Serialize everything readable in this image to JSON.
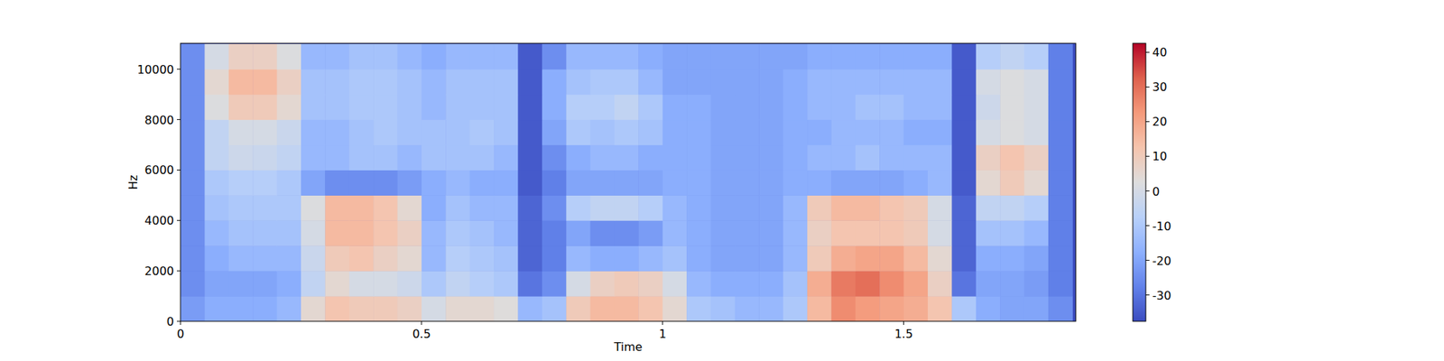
{
  "chart_data": {
    "type": "heatmap",
    "x_label": "Time",
    "y_label": "Hz",
    "x": [
      0.025,
      0.075,
      0.125,
      0.175,
      0.225,
      0.275,
      0.325,
      0.375,
      0.425,
      0.475,
      0.525,
      0.575,
      0.625,
      0.675,
      0.725,
      0.775,
      0.825,
      0.875,
      0.925,
      0.975,
      1.025,
      1.075,
      1.125,
      1.175,
      1.225,
      1.275,
      1.325,
      1.375,
      1.425,
      1.475,
      1.525,
      1.575,
      1.625,
      1.675,
      1.725,
      1.775,
      1.825
    ],
    "y": [
      500,
      1500,
      2500,
      3500,
      4500,
      5500,
      6500,
      7500,
      8500,
      9500,
      10500
    ],
    "values": [
      [
        -22,
        -18,
        -18,
        -18,
        -15,
        5,
        12,
        10,
        10,
        8,
        0,
        5,
        5,
        3,
        -15,
        -12,
        10,
        15,
        15,
        12,
        5,
        -10,
        -12,
        -15,
        -15,
        -10,
        15,
        25,
        22,
        20,
        18,
        12,
        -10,
        -18,
        -20,
        -20,
        -25
      ],
      [
        -25,
        -20,
        -20,
        -20,
        -18,
        -5,
        5,
        0,
        0,
        -2,
        -10,
        -5,
        -8,
        -10,
        -30,
        -25,
        0,
        8,
        10,
        8,
        0,
        -15,
        -18,
        -18,
        -18,
        -12,
        18,
        28,
        30,
        25,
        20,
        8,
        -30,
        -20,
        -20,
        -22,
        -28
      ],
      [
        -25,
        -18,
        -15,
        -15,
        -15,
        -3,
        10,
        12,
        8,
        5,
        -15,
        -8,
        -10,
        -12,
        -33,
        -28,
        -15,
        -18,
        -18,
        -15,
        -12,
        -18,
        -20,
        -20,
        -20,
        -15,
        10,
        18,
        20,
        20,
        15,
        5,
        -33,
        -18,
        -18,
        -20,
        -28
      ],
      [
        -25,
        -15,
        -12,
        -12,
        -12,
        0,
        15,
        15,
        12,
        8,
        -15,
        -10,
        -12,
        -15,
        -33,
        -28,
        -20,
        -25,
        -25,
        -22,
        -15,
        -18,
        -20,
        -20,
        -20,
        -15,
        8,
        12,
        12,
        12,
        10,
        0,
        -33,
        -12,
        -12,
        -15,
        -28
      ],
      [
        -25,
        -12,
        -10,
        -10,
        -10,
        2,
        15,
        15,
        12,
        5,
        -18,
        -12,
        -15,
        -15,
        -33,
        -25,
        -8,
        -5,
        -5,
        -8,
        -15,
        -18,
        -20,
        -20,
        -20,
        -15,
        10,
        15,
        15,
        12,
        10,
        0,
        -33,
        -5,
        -5,
        -8,
        -28
      ],
      [
        -25,
        -10,
        -8,
        -8,
        -10,
        -20,
        -25,
        -25,
        -25,
        -22,
        -18,
        -15,
        -18,
        -18,
        -35,
        -28,
        -20,
        -20,
        -20,
        -20,
        -18,
        -18,
        -20,
        -20,
        -20,
        -18,
        -18,
        -20,
        -20,
        -20,
        -18,
        -15,
        -35,
        5,
        10,
        5,
        -28
      ],
      [
        -25,
        -5,
        -2,
        -3,
        -5,
        -15,
        -15,
        -12,
        -12,
        -15,
        -12,
        -12,
        -12,
        -15,
        -35,
        -25,
        -18,
        -15,
        -15,
        -18,
        -18,
        -18,
        -20,
        -20,
        -20,
        -18,
        -15,
        -15,
        -12,
        -15,
        -15,
        -15,
        -35,
        8,
        12,
        8,
        -28
      ],
      [
        -25,
        -5,
        0,
        0,
        -3,
        -15,
        -15,
        -12,
        -10,
        -12,
        -12,
        -12,
        -10,
        -12,
        -35,
        -20,
        -10,
        -12,
        -10,
        -12,
        -18,
        -18,
        -20,
        -20,
        -20,
        -18,
        -18,
        -15,
        -15,
        -15,
        -18,
        -18,
        -35,
        0,
        2,
        0,
        -28
      ],
      [
        -25,
        2,
        10,
        10,
        5,
        -12,
        -12,
        -10,
        -10,
        -12,
        -15,
        -12,
        -12,
        -12,
        -35,
        -18,
        -8,
        -8,
        -5,
        -10,
        -18,
        -18,
        -20,
        -20,
        -20,
        -18,
        -15,
        -15,
        -12,
        -12,
        -15,
        -15,
        -35,
        -2,
        2,
        0,
        -28
      ],
      [
        -25,
        5,
        15,
        15,
        8,
        -12,
        -12,
        -10,
        -10,
        -12,
        -15,
        -12,
        -12,
        -12,
        -35,
        -18,
        -12,
        -10,
        -10,
        -15,
        -20,
        -20,
        -20,
        -20,
        -20,
        -18,
        -15,
        -15,
        -15,
        -15,
        -15,
        -15,
        -35,
        0,
        2,
        0,
        -28
      ],
      [
        -25,
        0,
        8,
        8,
        2,
        -15,
        -15,
        -12,
        -12,
        -15,
        -18,
        -15,
        -15,
        -15,
        -35,
        -25,
        -15,
        -15,
        -15,
        -18,
        -20,
        -20,
        -20,
        -20,
        -20,
        -20,
        -18,
        -18,
        -18,
        -18,
        -18,
        -18,
        -35,
        -8,
        -5,
        -8,
        -28
      ]
    ],
    "xlim": [
      0,
      1.857
    ],
    "ylim": [
      0,
      11025
    ],
    "xticks": [
      0,
      0.5,
      1,
      1.5
    ],
    "yticks": [
      0,
      2000,
      4000,
      6000,
      8000,
      10000
    ],
    "clim": [
      -37.6,
      42.6
    ],
    "cticks": [
      -30,
      -20,
      -10,
      0,
      10,
      20,
      30,
      40
    ]
  }
}
